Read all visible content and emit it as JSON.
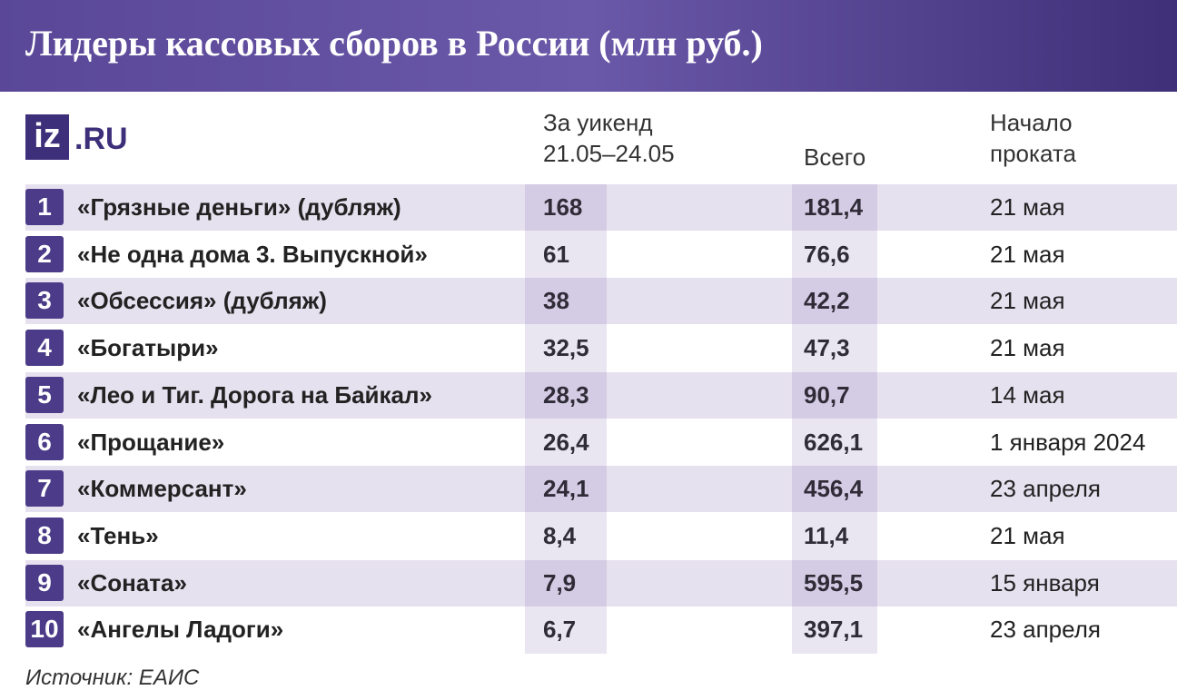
{
  "header": {
    "title": "Лидеры кассовых сборов в России (млн руб.)"
  },
  "logo": {
    "box": "iz",
    "text": ".RU"
  },
  "table": {
    "columns": {
      "weekend": "За уикенд\n21.05–24.05",
      "total": "Всего",
      "start": "Начало\nпроката"
    },
    "rows": [
      [
        "1",
        "«Грязные деньги» (дубляж)",
        "168",
        "181,4",
        "21 мая"
      ],
      [
        "2",
        "«Не одна дома 3. Выпускной»",
        "61",
        "76,6",
        "21 мая"
      ],
      [
        "3",
        "«Обсессия» (дубляж)",
        "38",
        "42,2",
        "21 мая"
      ],
      [
        "4",
        "«Богатыри»",
        "32,5",
        "47,3",
        "21 мая"
      ],
      [
        "5",
        "«Лео и Тиг. Дорога на Байкал»",
        "28,3",
        "90,7",
        "14 мая"
      ],
      [
        "6",
        "«Прощание»",
        "26,4",
        "626,1",
        "1 января 2024"
      ],
      [
        "7",
        "«Коммерсант»",
        "24,1",
        "456,4",
        "23 апреля"
      ],
      [
        "8",
        "«Тень»",
        "8,4",
        "11,4",
        "21 мая"
      ],
      [
        "9",
        "«Соната»",
        "7,9",
        "595,5",
        "15 января"
      ],
      [
        "10",
        "«Ангелы Ладоги»",
        "6,7",
        "397,1",
        "23 апреля"
      ]
    ]
  },
  "footer": {
    "source": "Источник: ЕАИС"
  }
}
